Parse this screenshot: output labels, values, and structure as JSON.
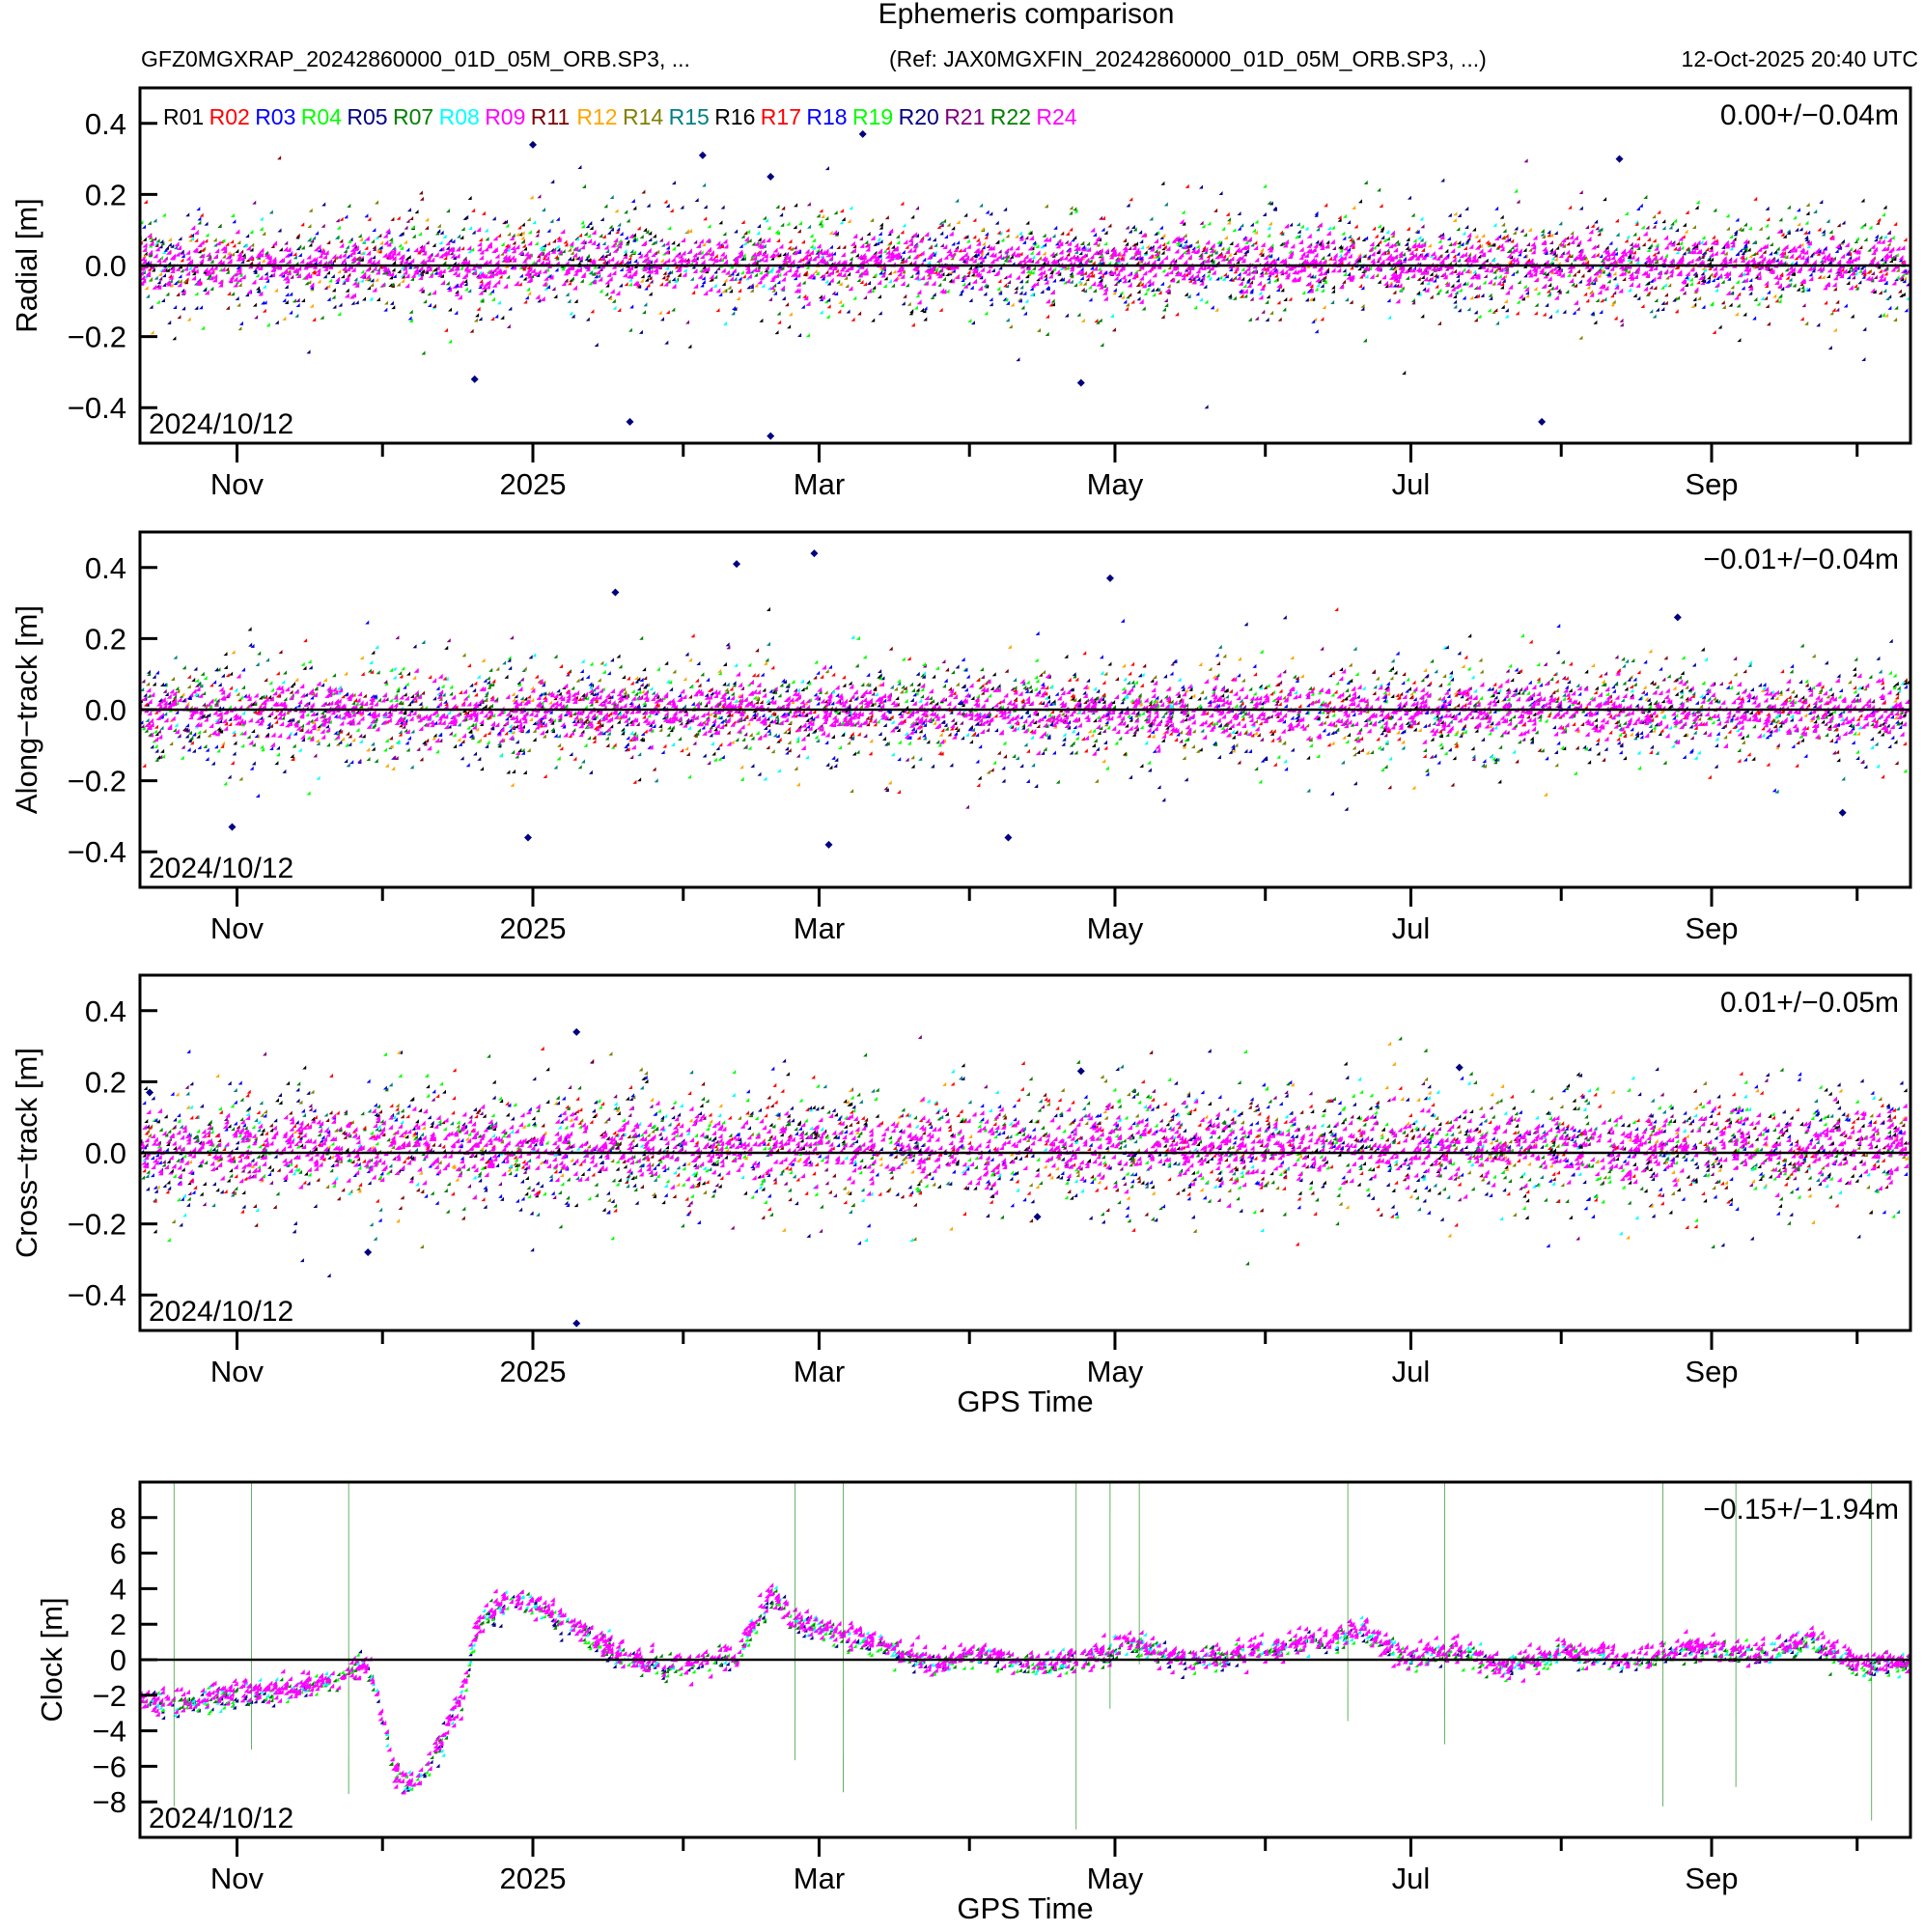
{
  "chart_data": {
    "type": "scatter",
    "title": "Ephemeris comparison",
    "subtitle_left": "GFZ0MGXRAP_20242860000_01D_05M_ORB.SP3, ...",
    "subtitle_ref": "(Ref: JAX0MGXFIN_20242860000_01D_05M_ORB.SP3, ...)",
    "subtitle_timestamp": "12-Oct-2025 20:40 UTC",
    "x_axis": {
      "label": "GPS Time",
      "range": [
        "2024-10-12",
        "2025-10-12"
      ],
      "major_ticks": [
        {
          "date": "2024-11-01",
          "label": "Nov"
        },
        {
          "date": "2025-01-01",
          "label": "2025"
        },
        {
          "date": "2025-03-01",
          "label": "Mar"
        },
        {
          "date": "2025-05-01",
          "label": "May"
        },
        {
          "date": "2025-07-01",
          "label": "Jul"
        },
        {
          "date": "2025-09-01",
          "label": "Sep"
        }
      ],
      "minor_ticks": [
        "2024-12-01",
        "2025-02-01",
        "2025-04-01",
        "2025-06-01",
        "2025-08-01",
        "2025-10-01"
      ],
      "start_label": "2024/10/12"
    },
    "legend": {
      "placement": "top-left",
      "entries": [
        {
          "name": "R01",
          "color": "#000000"
        },
        {
          "name": "R02",
          "color": "#ff0000"
        },
        {
          "name": "R03",
          "color": "#0000ff"
        },
        {
          "name": "R04",
          "color": "#00ff00"
        },
        {
          "name": "R05",
          "color": "#000080"
        },
        {
          "name": "R07",
          "color": "#008000"
        },
        {
          "name": "R08",
          "color": "#00ffff"
        },
        {
          "name": "R09",
          "color": "#ff00ff"
        },
        {
          "name": "R11",
          "color": "#800000"
        },
        {
          "name": "R12",
          "color": "#ffa500"
        },
        {
          "name": "R14",
          "color": "#808000"
        },
        {
          "name": "R15",
          "color": "#008080"
        },
        {
          "name": "R16",
          "color": "#000000"
        },
        {
          "name": "R17",
          "color": "#ff0000"
        },
        {
          "name": "R18",
          "color": "#0000ff"
        },
        {
          "name": "R19",
          "color": "#00ff00"
        },
        {
          "name": "R20",
          "color": "#000080"
        },
        {
          "name": "R21",
          "color": "#800080"
        },
        {
          "name": "R22",
          "color": "#008000"
        },
        {
          "name": "R24",
          "color": "#ff00ff"
        }
      ]
    },
    "panels": [
      {
        "id": "radial",
        "ylabel": "Radial [m]",
        "ylim": [
          -0.5,
          0.5
        ],
        "yticks": [
          -0.4,
          -0.2,
          0.0,
          0.2,
          0.4
        ],
        "ytick_labels": [
          "−0.4",
          "−0.2",
          "0.0",
          "0.2",
          "0.4"
        ],
        "stat": "0.00+/−0.04m",
        "mean": 0.0,
        "std": 0.04,
        "show_legend": true,
        "show_xlabel": false,
        "outliers": [
          {
            "date": "2025-01-01",
            "value": 0.34
          },
          {
            "date": "2025-02-05",
            "value": 0.31
          },
          {
            "date": "2025-02-19",
            "value": -0.48
          },
          {
            "date": "2025-02-19",
            "value": 0.25
          },
          {
            "date": "2025-03-10",
            "value": 0.37
          },
          {
            "date": "2025-04-24",
            "value": -0.33
          },
          {
            "date": "2025-07-28",
            "value": -0.44
          },
          {
            "date": "2025-08-13",
            "value": 0.3
          },
          {
            "date": "2025-01-21",
            "value": -0.44
          },
          {
            "date": "2024-12-20",
            "value": -0.32
          }
        ]
      },
      {
        "id": "along-track",
        "ylabel": "Along−track [m]",
        "ylim": [
          -0.5,
          0.5
        ],
        "yticks": [
          -0.4,
          -0.2,
          0.0,
          0.2,
          0.4
        ],
        "ytick_labels": [
          "−0.4",
          "−0.2",
          "0.0",
          "0.2",
          "0.4"
        ],
        "stat": "−0.01+/−0.04m",
        "mean": -0.01,
        "std": 0.04,
        "show_legend": false,
        "show_xlabel": false,
        "outliers": [
          {
            "date": "2025-02-28",
            "value": 0.44
          },
          {
            "date": "2025-02-12",
            "value": 0.41
          },
          {
            "date": "2025-04-30",
            "value": 0.37
          },
          {
            "date": "2025-01-18",
            "value": 0.33
          },
          {
            "date": "2024-10-31",
            "value": -0.33
          },
          {
            "date": "2025-03-03",
            "value": -0.38
          },
          {
            "date": "2025-04-09",
            "value": -0.36
          },
          {
            "date": "2025-08-25",
            "value": 0.26
          },
          {
            "date": "2025-09-28",
            "value": -0.29
          },
          {
            "date": "2024-12-31",
            "value": -0.36
          }
        ]
      },
      {
        "id": "cross-track",
        "ylabel": "Cross−track [m]",
        "ylim": [
          -0.5,
          0.5
        ],
        "yticks": [
          -0.4,
          -0.2,
          0.0,
          0.2,
          0.4
        ],
        "ytick_labels": [
          "−0.4",
          "−0.2",
          "0.0",
          "0.2",
          "0.4"
        ],
        "stat": "0.01+/−0.05m",
        "mean": 0.01,
        "std": 0.05,
        "show_legend": false,
        "show_xlabel": true,
        "outliers": [
          {
            "date": "2025-01-10",
            "value": 0.34
          },
          {
            "date": "2025-01-10",
            "value": -0.48
          },
          {
            "date": "2024-11-28",
            "value": -0.28
          },
          {
            "date": "2025-04-24",
            "value": 0.23
          },
          {
            "date": "2025-07-11",
            "value": 0.24
          },
          {
            "date": "2025-04-15",
            "value": -0.18
          },
          {
            "date": "2024-10-14",
            "value": 0.17
          }
        ]
      },
      {
        "id": "clock",
        "ylabel": "Clock [m]",
        "ylim": [
          -10,
          10
        ],
        "yticks": [
          -8,
          -6,
          -4,
          -2,
          0,
          2,
          4,
          6,
          8
        ],
        "ytick_labels": [
          "−8",
          "−6",
          "−4",
          "−2",
          "0",
          "2",
          "4",
          "6",
          "8"
        ],
        "stat": "−0.15+/−1.94m",
        "mean": -0.15,
        "std": 1.94,
        "show_legend": false,
        "show_xlabel": true,
        "trend": [
          {
            "date": "2024-10-12",
            "value": -2.4
          },
          {
            "date": "2024-10-20",
            "value": -2.7
          },
          {
            "date": "2024-10-28",
            "value": -2.2
          },
          {
            "date": "2024-11-05",
            "value": -2.0
          },
          {
            "date": "2024-11-15",
            "value": -1.8
          },
          {
            "date": "2024-11-22",
            "value": -1.2
          },
          {
            "date": "2024-11-28",
            "value": -0.4
          },
          {
            "date": "2024-12-01",
            "value": -3.0
          },
          {
            "date": "2024-12-04",
            "value": -6.5
          },
          {
            "date": "2024-12-08",
            "value": -7.2
          },
          {
            "date": "2024-12-13",
            "value": -5.0
          },
          {
            "date": "2024-12-18",
            "value": -2.0
          },
          {
            "date": "2024-12-21",
            "value": 1.8
          },
          {
            "date": "2024-12-27",
            "value": 3.3
          },
          {
            "date": "2025-01-02",
            "value": 2.8
          },
          {
            "date": "2025-01-08",
            "value": 2.0
          },
          {
            "date": "2025-01-14",
            "value": 1.0
          },
          {
            "date": "2025-01-22",
            "value": -0.3
          },
          {
            "date": "2025-02-01",
            "value": -0.5
          },
          {
            "date": "2025-02-12",
            "value": 0.0
          },
          {
            "date": "2025-02-20",
            "value": 3.5
          },
          {
            "date": "2025-02-24",
            "value": 2.0
          },
          {
            "date": "2025-03-05",
            "value": 1.3
          },
          {
            "date": "2025-03-15",
            "value": 0.6
          },
          {
            "date": "2025-03-25",
            "value": -0.4
          },
          {
            "date": "2025-04-05",
            "value": 0.1
          },
          {
            "date": "2025-04-15",
            "value": -0.6
          },
          {
            "date": "2025-04-25",
            "value": -0.2
          },
          {
            "date": "2025-05-05",
            "value": 0.8
          },
          {
            "date": "2025-05-15",
            "value": -0.2
          },
          {
            "date": "2025-05-28",
            "value": 0.2
          },
          {
            "date": "2025-06-10",
            "value": 0.8
          },
          {
            "date": "2025-06-22",
            "value": 1.5
          },
          {
            "date": "2025-07-01",
            "value": -0.3
          },
          {
            "date": "2025-07-10",
            "value": 0.5
          },
          {
            "date": "2025-07-22",
            "value": -0.6
          },
          {
            "date": "2025-08-02",
            "value": 0.3
          },
          {
            "date": "2025-08-15",
            "value": -0.2
          },
          {
            "date": "2025-08-28",
            "value": 0.5
          },
          {
            "date": "2025-09-10",
            "value": 0.2
          },
          {
            "date": "2025-09-22",
            "value": 1.0
          },
          {
            "date": "2025-10-01",
            "value": -0.5
          },
          {
            "date": "2025-10-12",
            "value": -0.3
          }
        ],
        "spikes": [
          {
            "date": "2024-10-19",
            "min": -8.5,
            "max": 9.5
          },
          {
            "date": "2024-11-04",
            "min": -5.3,
            "max": 4.0
          },
          {
            "date": "2024-11-24",
            "min": -7.8,
            "max": 9.8
          },
          {
            "date": "2025-02-24",
            "min": -5.9,
            "max": 9.9
          },
          {
            "date": "2025-03-06",
            "min": -7.7,
            "max": 9.5
          },
          {
            "date": "2025-04-23",
            "min": -9.8,
            "max": 9.5
          },
          {
            "date": "2025-04-30",
            "min": -3.0,
            "max": 8.5
          },
          {
            "date": "2025-05-06",
            "min": -0.5,
            "max": 9.8
          },
          {
            "date": "2025-06-18",
            "min": -3.7,
            "max": 9.7
          },
          {
            "date": "2025-07-08",
            "min": -5.0,
            "max": 9.8
          },
          {
            "date": "2025-08-22",
            "min": -8.5,
            "max": 9.3
          },
          {
            "date": "2025-09-06",
            "min": -7.4,
            "max": 9.7
          },
          {
            "date": "2025-10-04",
            "min": -9.3,
            "max": 9.6
          }
        ]
      }
    ]
  }
}
